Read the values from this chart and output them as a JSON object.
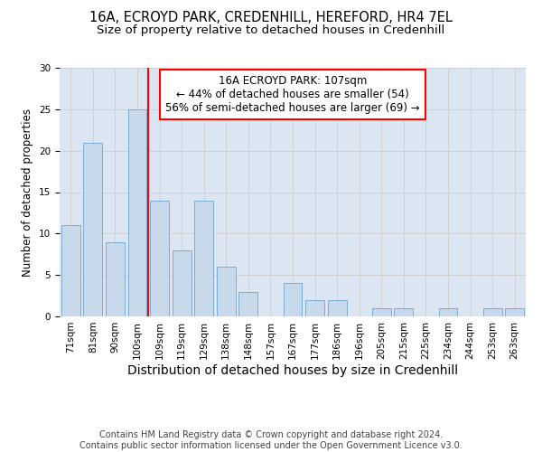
{
  "title1": "16A, ECROYD PARK, CREDENHILL, HEREFORD, HR4 7EL",
  "title2": "Size of property relative to detached houses in Credenhill",
  "xlabel": "Distribution of detached houses by size in Credenhill",
  "ylabel": "Number of detached properties",
  "categories": [
    "71sqm",
    "81sqm",
    "90sqm",
    "100sqm",
    "109sqm",
    "119sqm",
    "129sqm",
    "138sqm",
    "148sqm",
    "157sqm",
    "167sqm",
    "177sqm",
    "186sqm",
    "196sqm",
    "205sqm",
    "215sqm",
    "225sqm",
    "234sqm",
    "244sqm",
    "253sqm",
    "263sqm"
  ],
  "values": [
    11,
    21,
    9,
    25,
    14,
    8,
    14,
    6,
    3,
    0,
    4,
    2,
    2,
    0,
    1,
    1,
    0,
    1,
    0,
    1,
    1
  ],
  "bar_color": "#c8d9ec",
  "bar_edge_color": "#7aadd4",
  "bar_width": 0.85,
  "vline_x": 3.5,
  "vline_color": "red",
  "annotation_text": "16A ECROYD PARK: 107sqm\n← 44% of detached houses are smaller (54)\n56% of semi-detached houses are larger (69) →",
  "annotation_box_color": "white",
  "annotation_box_edge": "red",
  "ylim": [
    0,
    30
  ],
  "yticks": [
    0,
    5,
    10,
    15,
    20,
    25,
    30
  ],
  "grid_color": "#cccccc",
  "bg_color": "#dce6f2",
  "footer": "Contains HM Land Registry data © Crown copyright and database right 2024.\nContains public sector information licensed under the Open Government Licence v3.0.",
  "title1_fontsize": 10.5,
  "title2_fontsize": 9.5,
  "xlabel_fontsize": 10,
  "ylabel_fontsize": 8.5,
  "tick_fontsize": 7.5,
  "annotation_fontsize": 8.5,
  "footer_fontsize": 7
}
